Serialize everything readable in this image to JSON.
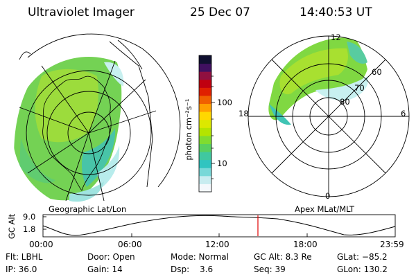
{
  "header": {
    "instrument": "Ultraviolet Imager",
    "date": "25 Dec 07",
    "time": "14:40:53 UT"
  },
  "colorbar": {
    "unit_label": "photon cm⁻²s⁻¹",
    "ticks": [
      "100",
      "10"
    ],
    "colors": [
      "#f4f8fc",
      "#c8ecf0",
      "#78d8d8",
      "#30c4c0",
      "#40c8a0",
      "#58d060",
      "#80dc30",
      "#b4e400",
      "#dce800",
      "#ffd800",
      "#ffa000",
      "#f06000",
      "#e02000",
      "#c00010",
      "#901040",
      "#401060",
      "#101030"
    ]
  },
  "left_map": {
    "caption": "Geographic Lat/Lon"
  },
  "right_map": {
    "caption": "Apex MLat/MLT",
    "mlt_labels": {
      "top": "12",
      "left": "18",
      "right": "6",
      "bottom": "0"
    },
    "lat_labels": [
      "60",
      "70",
      "80"
    ]
  },
  "alt_plot": {
    "ylabel": "GC Alt",
    "yticks": [
      "9.0",
      "1.8"
    ],
    "xticks": [
      "00:00",
      "06:00",
      "12:00",
      "18:00",
      "23:59"
    ],
    "marker_color": "#e00000"
  },
  "footer": {
    "flt": "Flt: LBHL",
    "ip": "IP: 36.0",
    "door": "Door: Open",
    "gain": "Gain: 14",
    "mode": "Mode: Normal",
    "dsp": "Dsp:",
    "dsp_val": "3.6",
    "gcalt": "GC Alt: 8.3 Re",
    "seq": "Seq: 39",
    "glat": "GLat: −85.2",
    "glon": "GLon: 130.2"
  }
}
